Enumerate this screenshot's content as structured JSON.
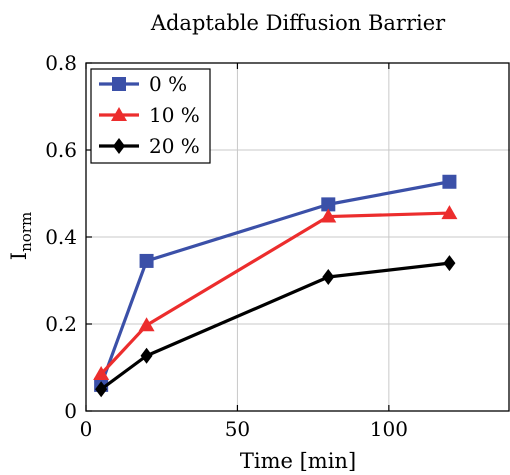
{
  "chart_data": {
    "type": "line",
    "title": "Adaptable Diffusion Barrier",
    "xlabel": "Time [min]",
    "ylabel": "I",
    "ylabel_subscript": "norm",
    "xlim": [
      0,
      140
    ],
    "ylim": [
      0,
      0.8
    ],
    "xticks": [
      0,
      50,
      100
    ],
    "yticks": [
      0,
      0.2,
      0.4,
      0.6,
      0.8
    ],
    "xtick_labels": [
      "0",
      "50",
      "100"
    ],
    "ytick_labels": [
      "0",
      "0.2",
      "0.4",
      "0.6",
      "0.8"
    ],
    "grid": true,
    "legend_position": "top-left",
    "series": [
      {
        "name": "0 %",
        "color": "#3b50a8",
        "marker": "square",
        "x": [
          5,
          20,
          80,
          120
        ],
        "values": [
          0.06,
          0.345,
          0.475,
          0.527
        ]
      },
      {
        "name": "10 %",
        "color": "#ec2d2d",
        "marker": "triangle",
        "x": [
          5,
          20,
          80,
          120
        ],
        "values": [
          0.085,
          0.197,
          0.447,
          0.455
        ]
      },
      {
        "name": "20 %",
        "color": "#000000",
        "marker": "diamond",
        "x": [
          5,
          20,
          80,
          120
        ],
        "values": [
          0.05,
          0.127,
          0.308,
          0.34
        ]
      }
    ]
  }
}
